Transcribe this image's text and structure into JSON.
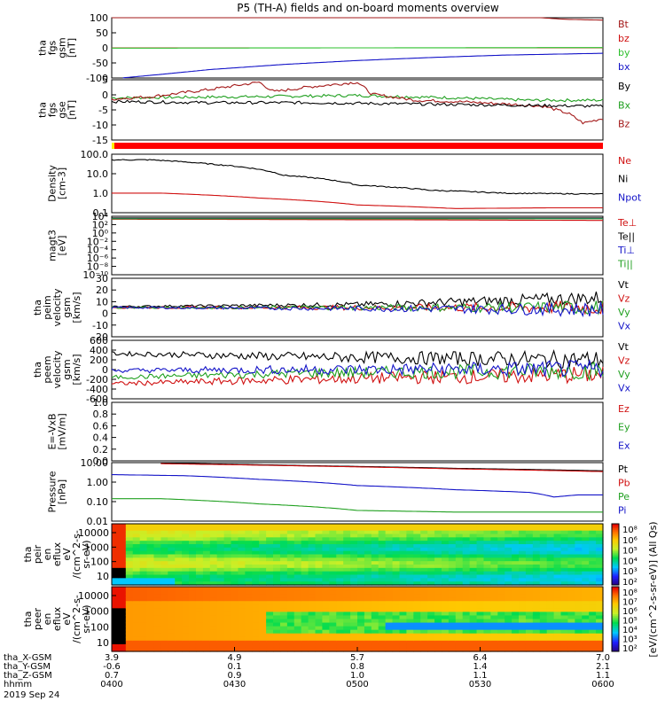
{
  "title": "P5 (TH-A) fields and on-board moments overview",
  "chart_data": [
    {
      "type": "line",
      "panel": "fgs_gsm",
      "ylabel": [
        "tha",
        "fgs",
        "gsm",
        "[nT]"
      ],
      "ylim": [
        -100,
        100
      ],
      "yticks": [
        100,
        50,
        0,
        -50,
        -100
      ],
      "series": [
        {
          "name": "Bt",
          "color": "#a31818",
          "x": [
            0,
            0.5,
            0.8,
            0.92,
            1
          ],
          "y": [
            120,
            115,
            108,
            95,
            92
          ]
        },
        {
          "name": "bz",
          "color": "#d01010",
          "x": [
            0,
            1
          ],
          "y": [
            0,
            0
          ]
        },
        {
          "name": "by",
          "color": "#2ec02e",
          "x": [
            0,
            1
          ],
          "y": [
            -1,
            1
          ]
        },
        {
          "name": "bx",
          "color": "#1414c8",
          "x": [
            0.02,
            0.1,
            0.2,
            0.35,
            0.5,
            0.65,
            0.8,
            1
          ],
          "y": [
            -100,
            -88,
            -72,
            -55,
            -42,
            -32,
            -24,
            -18
          ]
        }
      ]
    },
    {
      "type": "line",
      "panel": "fgs_gse",
      "ylabel": [
        "tha",
        "fgs",
        "gse",
        "[nT]"
      ],
      "ylim": [
        -17,
        8
      ],
      "yticks": [
        5,
        0,
        -5,
        -10,
        -15
      ],
      "series": [
        {
          "name": "Bx",
          "color": "#20a020",
          "x": [
            0,
            0.3,
            0.5,
            0.7,
            0.85,
            1
          ],
          "y": [
            0.5,
            1,
            1.5,
            0.5,
            -0.5,
            -0.5
          ]
        },
        {
          "name": "Bz",
          "color": "#a31818",
          "x": [
            0,
            0.08,
            0.2,
            0.3,
            0.33,
            0.4,
            0.5,
            0.53,
            0.62,
            0.7,
            0.8,
            0.88,
            0.93,
            0.96,
            1
          ],
          "y": [
            0,
            1,
            4,
            7,
            3,
            5,
            7,
            2,
            -0.5,
            -1,
            -2,
            -3,
            -6,
            -10,
            -8
          ]
        },
        {
          "name": "By",
          "color": "#000000",
          "x": [
            0,
            0.2,
            0.4,
            0.6,
            0.8,
            1
          ],
          "y": [
            -1,
            -1.5,
            -1.5,
            -2,
            -2.5,
            -3
          ]
        }
      ]
    },
    {
      "type": "line",
      "panel": "density",
      "ylabel": [
        "Density",
        "[cm-3]"
      ],
      "yscale": "log",
      "ylim": [
        0.05,
        200
      ],
      "yticks": [
        "100.0",
        "10.0",
        "1.0",
        "0.1"
      ],
      "series": [
        {
          "name": "Ne",
          "color": "#d01010",
          "x": [
            0,
            0.1,
            0.3,
            0.5,
            0.7,
            0.9,
            1
          ],
          "y": [
            0.8,
            0.8,
            0.4,
            0.15,
            0.09,
            0.1,
            0.1
          ]
        },
        {
          "name": "Ni",
          "color": "#000000",
          "x": [
            0,
            0.08,
            0.2,
            0.35,
            0.5,
            0.65,
            0.8,
            1
          ],
          "y": [
            90,
            90,
            50,
            10,
            2.5,
            1.2,
            0.8,
            0.7
          ]
        },
        {
          "name": "Npot",
          "color": "#1414c8",
          "x": [],
          "y": []
        }
      ]
    },
    {
      "type": "line",
      "panel": "temperature",
      "ylabel": [
        "magt3",
        "[eV]"
      ],
      "yscale": "log",
      "ylim": [
        1e-10,
        10000.0
      ],
      "yticks": [
        "10⁴",
        "10²",
        "10⁰",
        "10⁻²",
        "10⁻⁴",
        "10⁻⁶",
        "10⁻⁸",
        "10⁻¹⁰"
      ],
      "series": [
        {
          "name": "Te⊥",
          "color": "#d01010",
          "x": [
            0,
            1
          ],
          "y": [
            2000,
            1000
          ]
        },
        {
          "name": "Te||",
          "color": "#000000",
          "x": [
            0,
            1
          ],
          "y": [
            4000,
            4000
          ]
        },
        {
          "name": "Ti⊥",
          "color": "#1414c8",
          "x": [
            0,
            1
          ],
          "y": [
            3000,
            3000
          ]
        },
        {
          "name": "Ti||",
          "color": "#20a020",
          "x": [
            0,
            1
          ],
          "y": [
            2500,
            2500
          ]
        }
      ]
    },
    {
      "type": "line",
      "panel": "peim_velocity",
      "ylabel": [
        "tha",
        "peim",
        "velocity",
        "gsm",
        "[km/s]"
      ],
      "ylim": [
        -30,
        30
      ],
      "yticks": [
        30,
        20,
        10,
        0,
        -10,
        -20
      ],
      "series": [
        {
          "name": "Vt",
          "color": "#000000",
          "x": [
            0,
            0.5,
            1
          ],
          "y": [
            1,
            3,
            10
          ]
        },
        {
          "name": "Vz",
          "color": "#d01010",
          "x": [
            0,
            1
          ],
          "y": [
            0,
            0
          ]
        },
        {
          "name": "Vy",
          "color": "#20a020",
          "x": [
            0,
            1
          ],
          "y": [
            0,
            0
          ]
        },
        {
          "name": "Vx",
          "color": "#1414c8",
          "x": [
            0,
            1
          ],
          "y": [
            0,
            -2
          ]
        }
      ]
    },
    {
      "type": "line",
      "panel": "peem_velocity",
      "ylabel": [
        "tha",
        "peem",
        "velocity",
        "gsm",
        "[km/s]"
      ],
      "ylim": [
        -600,
        600
      ],
      "yticks": [
        600,
        400,
        200,
        0,
        -200,
        -400,
        -600
      ],
      "series": [
        {
          "name": "Vt",
          "color": "#000000",
          "x": [
            0,
            0.4,
            1
          ],
          "y": [
            330,
            260,
            200
          ]
        },
        {
          "name": "Vz",
          "color": "#d01010",
          "x": [
            0,
            0.4,
            1
          ],
          "y": [
            -290,
            -200,
            -100
          ]
        },
        {
          "name": "Vy",
          "color": "#20a020",
          "x": [
            0,
            0.4,
            1
          ],
          "y": [
            -160,
            -70,
            -20
          ]
        },
        {
          "name": "Vx",
          "color": "#1414c8",
          "x": [
            0,
            0.4,
            1
          ],
          "y": [
            -20,
            0,
            10
          ]
        }
      ]
    },
    {
      "type": "line",
      "panel": "efield",
      "ylabel": [
        "E=-VxB",
        "[mV/m]"
      ],
      "ylim": [
        0,
        1
      ],
      "yticks": [
        "1.0",
        "0.8",
        "0.6",
        "0.4",
        "0.2",
        "0.0"
      ],
      "series": [
        {
          "name": "Ez",
          "color": "#d01010",
          "x": [],
          "y": []
        },
        {
          "name": "Ey",
          "color": "#20a020",
          "x": [],
          "y": []
        },
        {
          "name": "Ex",
          "color": "#1414c8",
          "x": [],
          "y": []
        }
      ]
    },
    {
      "type": "line",
      "panel": "pressure",
      "ylabel": [
        "Pressure",
        "[nPa]"
      ],
      "yscale": "log",
      "ylim": [
        0.006,
        15
      ],
      "yticks": [
        "10.00",
        "1.00",
        "0.10",
        "0.01"
      ],
      "series": [
        {
          "name": "Pt",
          "color": "#000000",
          "x": [
            0.1,
            0.4,
            0.7,
            1
          ],
          "y": [
            14,
            10,
            7,
            5
          ]
        },
        {
          "name": "Pb",
          "color": "#d01010",
          "x": [
            0.1,
            0.4,
            0.7,
            1
          ],
          "y": [
            13,
            9.5,
            6.5,
            4.5
          ]
        },
        {
          "name": "Pe",
          "color": "#20a020",
          "x": [
            0,
            0.1,
            0.3,
            0.5,
            0.7,
            1
          ],
          "y": [
            0.12,
            0.12,
            0.06,
            0.025,
            0.02,
            0.02
          ]
        },
        {
          "name": "Pi",
          "color": "#1414c8",
          "x": [
            0,
            0.15,
            0.3,
            0.5,
            0.7,
            0.85,
            0.9,
            0.95,
            1
          ],
          "y": [
            3,
            2.6,
            1.6,
            0.7,
            0.4,
            0.28,
            0.15,
            0.2,
            0.2
          ]
        }
      ]
    },
    {
      "type": "heatmap",
      "panel": "peir_eflux",
      "ylabel": [
        "tha",
        "peir",
        "en",
        "eflux",
        "eV",
        "/(cm^2-s-",
        "sr-eV)"
      ],
      "yscale": "log",
      "yticks": [
        "10000",
        "1000",
        "100",
        "10"
      ]
    },
    {
      "type": "heatmap",
      "panel": "peer_eflux",
      "ylabel": [
        "tha",
        "peer",
        "en",
        "eflux",
        "eV",
        "/(cm^2-s-",
        "sr-eV)"
      ],
      "yscale": "log",
      "yticks": [
        "10000",
        "1000",
        "100",
        "10"
      ]
    }
  ],
  "right_labels": [
    [
      "Bt",
      "bz",
      "by",
      "bx"
    ],
    [
      "By",
      "Bx",
      "Bz"
    ],
    [
      "Ne",
      "Ni",
      "Npot"
    ],
    [
      "Te⊥",
      "Te||",
      "Ti⊥",
      "Ti||"
    ],
    [
      "Vt",
      "Vz",
      "Vy",
      "Vx"
    ],
    [
      "Vt",
      "Vz",
      "Vy",
      "Vx"
    ],
    [
      "Ez",
      "Ey",
      "Ex"
    ],
    [
      "Pt",
      "Pb",
      "Pe",
      "Pi"
    ]
  ],
  "colorbar": {
    "ticks": [
      "10⁸",
      "10⁶",
      "10⁵",
      "10⁴",
      "10³",
      "10²"
    ],
    "ticks2": [
      "10⁸",
      "10⁷",
      "10⁶",
      "10⁵",
      "10⁴",
      "10³",
      "10²"
    ],
    "label": "[eV/(cm^2-s-sr-eV)] (All Qs)"
  },
  "x_axis": {
    "row_labels": [
      "tha_X-GSM",
      "tha_Y-GSM",
      "tha_Z-GSM",
      "hhmm"
    ],
    "date": "2019 Sep 24",
    "columns": [
      {
        "x": "3.9",
        "y": "-0.6",
        "z": "0.7",
        "time": "0400"
      },
      {
        "x": "4.9",
        "y": "0.1",
        "z": "0.9",
        "time": "0430"
      },
      {
        "x": "5.7",
        "y": "0.8",
        "z": "1.0",
        "time": "0500"
      },
      {
        "x": "6.4",
        "y": "1.4",
        "z": "1.1",
        "time": "0530"
      },
      {
        "x": "7.0",
        "y": "2.1",
        "z": "1.1",
        "time": "0600"
      }
    ]
  }
}
